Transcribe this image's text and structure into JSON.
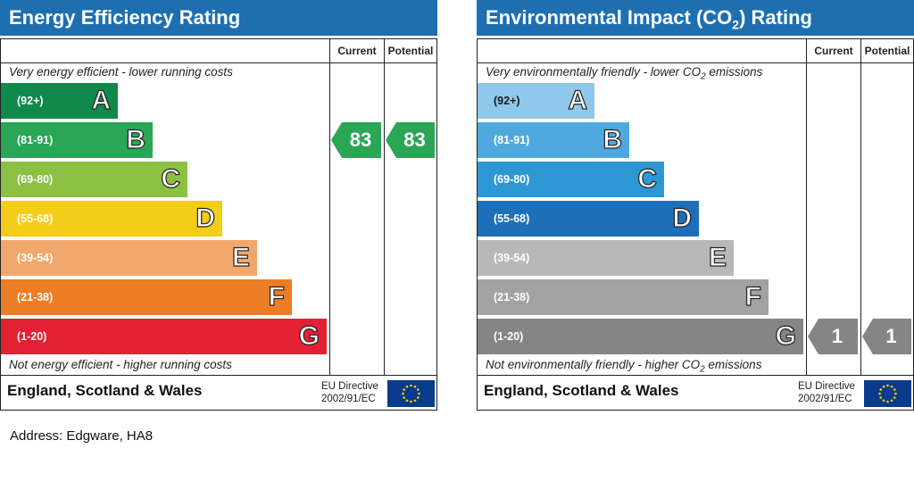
{
  "chart_data": [
    {
      "type": "bar",
      "title": "Energy Efficiency Rating",
      "columns": [
        "Current",
        "Potential"
      ],
      "top_note": "Very energy efficient - lower running costs",
      "bottom_note": "Not energy efficient - higher running costs",
      "bands": [
        {
          "range": "(92+)",
          "letter": "A",
          "color": "#0f8a4b"
        },
        {
          "range": "(81-91)",
          "letter": "B",
          "color": "#2aa655"
        },
        {
          "range": "(69-80)",
          "letter": "C",
          "color": "#8cc043"
        },
        {
          "range": "(55-68)",
          "letter": "D",
          "color": "#f4cc1a"
        },
        {
          "range": "(39-54)",
          "letter": "E",
          "color": "#f2a76c"
        },
        {
          "range": "(21-38)",
          "letter": "F",
          "color": "#ec7d24"
        },
        {
          "range": "(1-20)",
          "letter": "G",
          "color": "#e42034"
        }
      ],
      "current": {
        "value": 83,
        "band": "B",
        "color": "#2aa655"
      },
      "potential": {
        "value": 83,
        "band": "B",
        "color": "#2aa655"
      },
      "footer": {
        "country": "England, Scotland & Wales",
        "directive_line1": "EU Directive",
        "directive_line2": "2002/91/EC"
      }
    },
    {
      "type": "bar",
      "title_prefix": "Environmental Impact (CO",
      "title_sub": "2",
      "title_suffix": ") Rating",
      "columns": [
        "Current",
        "Potential"
      ],
      "top_note_prefix": "Very environmentally friendly - lower CO",
      "top_note_sub": "2",
      "top_note_suffix": " emissions",
      "bottom_note_prefix": "Not environmentally friendly - higher CO",
      "bottom_note_sub": "2",
      "bottom_note_suffix": " emissions",
      "bands": [
        {
          "range": "(92+)",
          "letter": "A",
          "color": "#8fc8ea"
        },
        {
          "range": "(81-91)",
          "letter": "B",
          "color": "#4fa9de"
        },
        {
          "range": "(69-80)",
          "letter": "C",
          "color": "#2d97d4"
        },
        {
          "range": "(55-68)",
          "letter": "D",
          "color": "#1d6fb8"
        },
        {
          "range": "(39-54)",
          "letter": "E",
          "color": "#b8b8b8"
        },
        {
          "range": "(21-38)",
          "letter": "F",
          "color": "#a2a2a2"
        },
        {
          "range": "(1-20)",
          "letter": "G",
          "color": "#858585"
        }
      ],
      "current": {
        "value": 1,
        "band": "G",
        "color": "#858585"
      },
      "potential": {
        "value": 1,
        "band": "G",
        "color": "#858585"
      },
      "footer": {
        "country": "England, Scotland & Wales",
        "directive_line1": "EU Directive",
        "directive_line2": "2002/91/EC"
      }
    }
  ],
  "address": "Address: Edgware, HA8"
}
